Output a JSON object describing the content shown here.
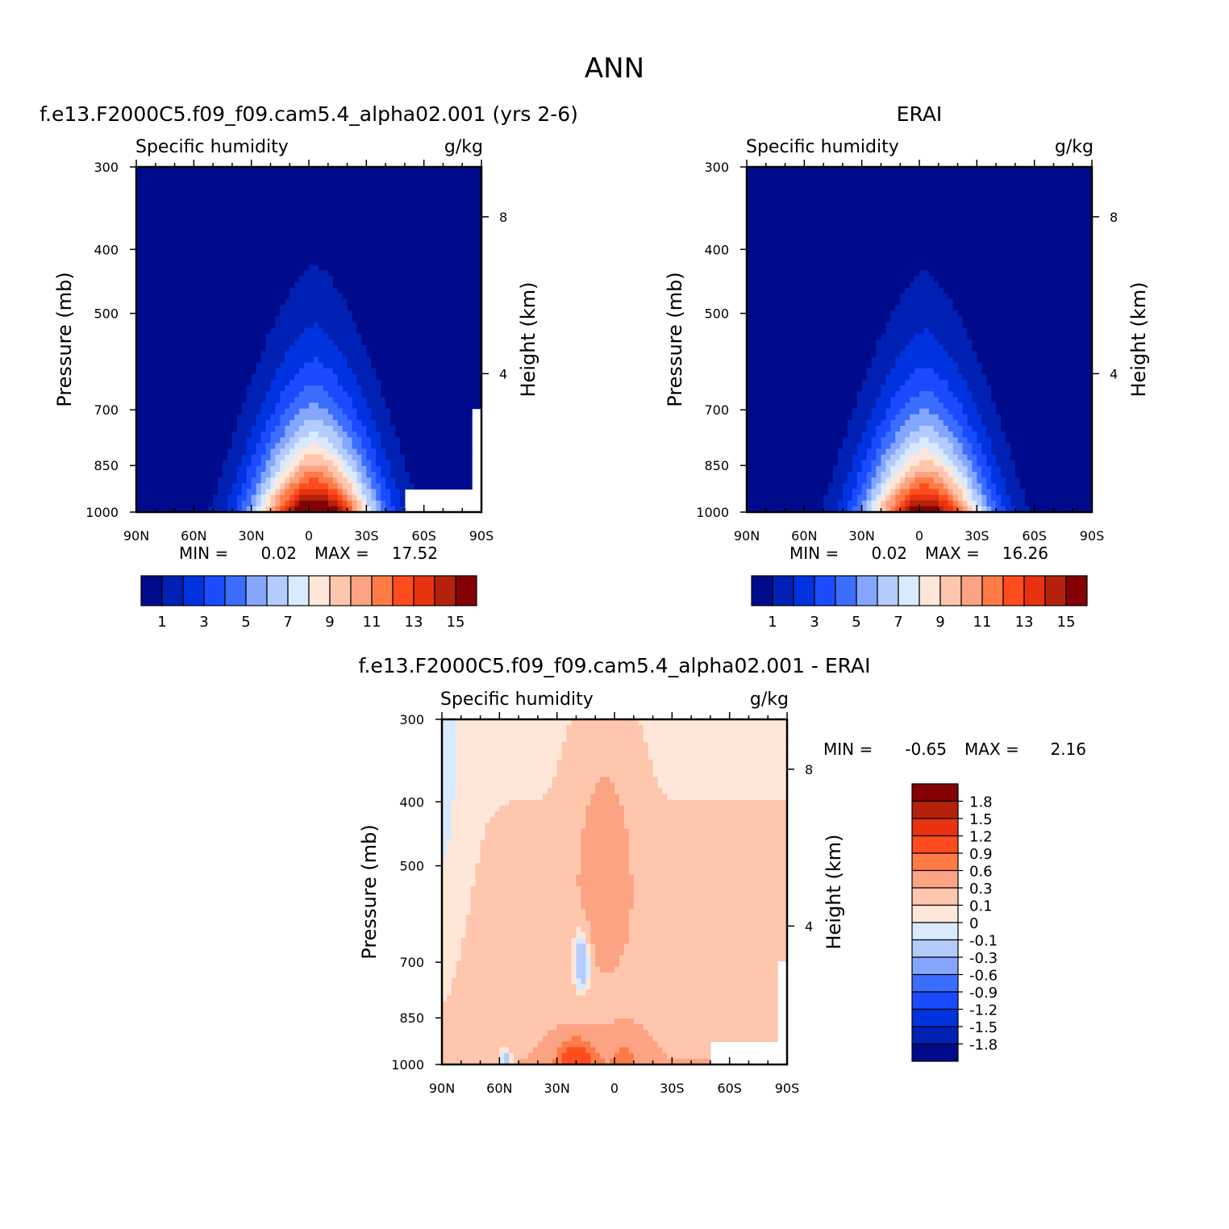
{
  "figure_title": "ANN",
  "colors": {
    "abs_levels": [
      "#000b8c",
      "#0021b3",
      "#0033e0",
      "#1a4bff",
      "#3b6dff",
      "#84a7fd",
      "#b3ccfd",
      "#d9eafe",
      "#fee7d8",
      "#fec6ad",
      "#fca383",
      "#fe7b46",
      "#fe4c1f",
      "#e83210",
      "#b4220c",
      "#840104"
    ],
    "diff_levels": [
      "#000b8c",
      "#0021b3",
      "#0033e0",
      "#1a4bff",
      "#3b6dff",
      "#84a7fd",
      "#b3ccfd",
      "#d9eafe",
      "#fee7d8",
      "#fec6ad",
      "#fca383",
      "#fe7b46",
      "#fe4c1f",
      "#e83210",
      "#b4220c",
      "#840104"
    ]
  },
  "chart_data": [
    {
      "type": "heatmap",
      "title": "f.e13.F2000C5.f09_f09.cam5.4_alpha02.001 (yrs 2-6)",
      "left_label": "Specific humidity",
      "right_label": "g/kg",
      "ylabel": "Pressure (mb)",
      "y2label": "Height (km)",
      "x_ticks": [
        "90N",
        "60N",
        "30N",
        "0",
        "30S",
        "60S",
        "90S"
      ],
      "y_ticks": [
        "300",
        "400",
        "500",
        "700",
        "850",
        "1000"
      ],
      "y2_ticks": [
        "8",
        "4"
      ],
      "min_label": "MIN =",
      "min_value": "0.02",
      "max_label": "MAX =",
      "max_value": "17.52",
      "colorbar_labels": [
        "1",
        "3",
        "5",
        "7",
        "9",
        "11",
        "13",
        "15"
      ],
      "peak_latitude": -3,
      "peak_value": 17.52
    },
    {
      "type": "heatmap",
      "title": "ERAI",
      "left_label": "Specific humidity",
      "right_label": "g/kg",
      "ylabel": "Pressure (mb)",
      "y2label": "Height (km)",
      "x_ticks": [
        "90N",
        "60N",
        "30N",
        "0",
        "30S",
        "60S",
        "90S"
      ],
      "y_ticks": [
        "300",
        "400",
        "500",
        "700",
        "850",
        "1000"
      ],
      "y2_ticks": [
        "8",
        "4"
      ],
      "min_label": "MIN =",
      "min_value": "0.02",
      "max_label": "MAX =",
      "max_value": "16.26",
      "colorbar_labels": [
        "1",
        "3",
        "5",
        "7",
        "9",
        "11",
        "13",
        "15"
      ],
      "peak_latitude": -3,
      "peak_value": 16.26
    },
    {
      "type": "heatmap",
      "title": "f.e13.F2000C5.f09_f09.cam5.4_alpha02.001 - ERAI",
      "left_label": "Specific humidity",
      "right_label": "g/kg",
      "ylabel": "Pressure (mb)",
      "y2label": "Height (km)",
      "x_ticks": [
        "90N",
        "60N",
        "30N",
        "0",
        "30S",
        "60S",
        "90S"
      ],
      "y_ticks": [
        "300",
        "400",
        "500",
        "700",
        "850",
        "1000"
      ],
      "y2_ticks": [
        "8",
        "4"
      ],
      "min_label": "MIN =",
      "min_value": "-0.65",
      "max_label": "MAX =",
      "max_value": "2.16",
      "colorbar_labels": [
        "1.8",
        "1.5",
        "1.2",
        "0.9",
        "0.6",
        "0.3",
        "0.1",
        "0",
        "-0.1",
        "-0.3",
        "-0.6",
        "-0.9",
        "-1.2",
        "-1.5",
        "-1.8"
      ]
    }
  ]
}
